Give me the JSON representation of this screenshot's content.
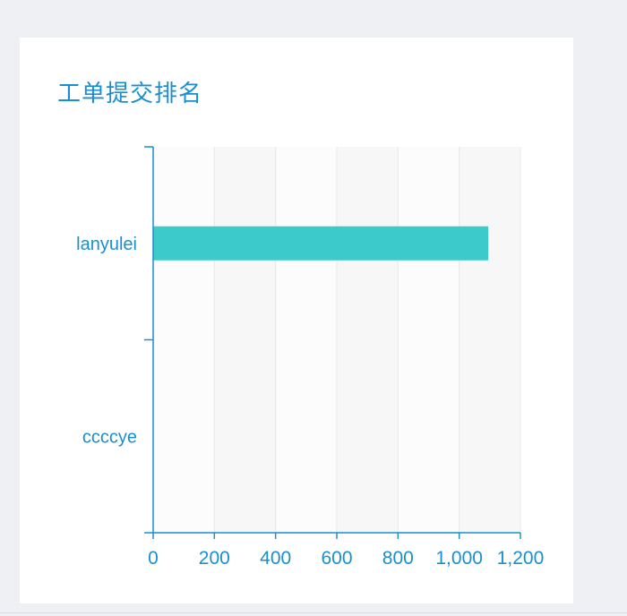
{
  "card": {
    "title": "工单提交排名"
  },
  "chart_data": {
    "type": "bar",
    "orientation": "horizontal",
    "title": "工单提交排名",
    "categories": [
      "lanyulei",
      "ccccye"
    ],
    "values": [
      1095,
      0
    ],
    "xlim": [
      0,
      1200
    ],
    "xticks": [
      0,
      200,
      400,
      600,
      800,
      1000,
      1200
    ],
    "xtick_labels": [
      "0",
      "200",
      "400",
      "600",
      "800",
      "1,000",
      "1,200"
    ],
    "grid": true,
    "colors": {
      "bar": "#3ccbca",
      "axis": "#1a8fd0",
      "label": "#1a8fd0",
      "grid": "#e8e8e8",
      "band": "#f7f7f7"
    }
  }
}
